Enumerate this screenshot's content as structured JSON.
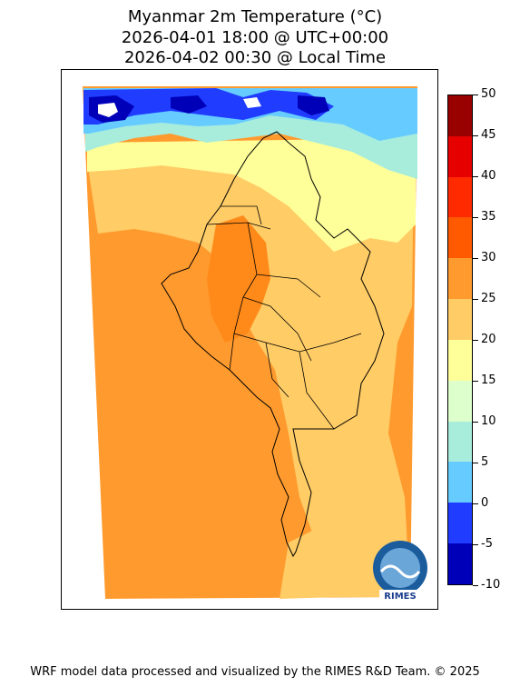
{
  "title": {
    "line1": "Myanmar 2m Temperature (°C)",
    "line2": "2026-04-01 18:00 @ UTC+00:00",
    "line3": "2026-04-02 00:30 @ Local Time"
  },
  "colorbar": {
    "ticks": [
      "50",
      "45",
      "40",
      "35",
      "30",
      "25",
      "20",
      "15",
      "10",
      "5",
      "0",
      "-5",
      "-10"
    ],
    "colors": [
      "#990000",
      "#e60000",
      "#ff2a00",
      "#ff5a00",
      "#ff9a2e",
      "#ffcc66",
      "#ffff99",
      "#ddffcc",
      "#a8ecdc",
      "#66ccff",
      "#1f3cff",
      "#0000b8"
    ]
  },
  "logo": {
    "text": "RIMES"
  },
  "map_palette": {
    "background": "#ff9a2e",
    "warm_band": "#ffcc66",
    "mild_band": "#ffff99",
    "cool_band": "#a8ecdc",
    "cold_band": "#66ccff",
    "very_cold": "#1f3cff",
    "freezing": "#0000b8",
    "hot_core": "#ff8a1a"
  },
  "footer": "WRF model data processed and visualized by the RIMES R&D Team. © 2025"
}
